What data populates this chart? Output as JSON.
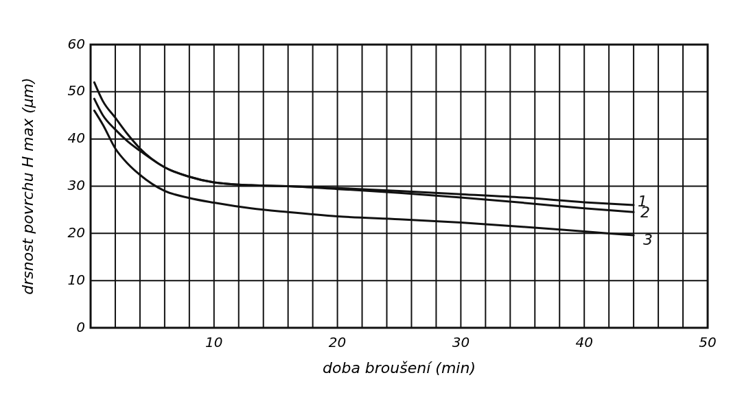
{
  "chart_data": {
    "type": "line",
    "xlabel": "doba broušení (min)",
    "ylabel": "drsnost povrchu H max (μm)",
    "xlim": [
      0,
      50
    ],
    "ylim": [
      0,
      60
    ],
    "xticks": [
      {
        "value": 0,
        "label": null
      },
      {
        "value": 2,
        "label": null
      },
      {
        "value": 4,
        "label": null
      },
      {
        "value": 6,
        "label": null
      },
      {
        "value": 8,
        "label": null
      },
      10,
      {
        "value": 12,
        "label": null
      },
      {
        "value": 14,
        "label": null
      },
      {
        "value": 16,
        "label": null
      },
      {
        "value": 18,
        "label": null
      },
      20,
      {
        "value": 22,
        "label": null
      },
      {
        "value": 24,
        "label": null
      },
      {
        "value": 26,
        "label": null
      },
      {
        "value": 28,
        "label": null
      },
      30,
      {
        "value": 32,
        "label": null
      },
      {
        "value": 34,
        "label": null
      },
      {
        "value": 36,
        "label": null
      },
      {
        "value": 38,
        "label": null
      },
      40,
      {
        "value": 42,
        "label": null
      },
      {
        "value": 44,
        "label": null
      },
      {
        "value": 46,
        "label": null
      },
      {
        "value": 48,
        "label": null
      },
      50
    ],
    "yticks": [
      0,
      10,
      20,
      30,
      40,
      50,
      60
    ],
    "grid": true,
    "marker": "none",
    "line_style": "solid",
    "series": [
      {
        "name": "1",
        "color": "#111111",
        "x": [
          0.3,
          1,
          2,
          3,
          4,
          6,
          8,
          10,
          13,
          16,
          20,
          25,
          30,
          35,
          40,
          44
        ],
        "values": [
          52,
          48,
          44.5,
          41,
          38,
          34,
          32,
          30.8,
          30.2,
          30,
          29.6,
          29,
          28.3,
          27.6,
          26.6,
          26
        ]
      },
      {
        "name": "2",
        "color": "#111111",
        "x": [
          0.3,
          1,
          2,
          3,
          4,
          6,
          8,
          10,
          13,
          16,
          20,
          25,
          30,
          35,
          40,
          44
        ],
        "values": [
          48.5,
          45,
          42,
          39.5,
          37.5,
          34,
          32,
          30.8,
          30.2,
          30,
          29.4,
          28.6,
          27.6,
          26.5,
          25.3,
          24.5
        ]
      },
      {
        "name": "3",
        "color": "#111111",
        "x": [
          0.3,
          1,
          2,
          3,
          4,
          6,
          8,
          10,
          13,
          16,
          20,
          25,
          30,
          35,
          40,
          44
        ],
        "values": [
          46,
          43,
          38,
          34.8,
          32.4,
          29,
          27.5,
          26.5,
          25.3,
          24.5,
          23.6,
          23,
          22.3,
          21.4,
          20.4,
          19.6
        ]
      }
    ]
  }
}
